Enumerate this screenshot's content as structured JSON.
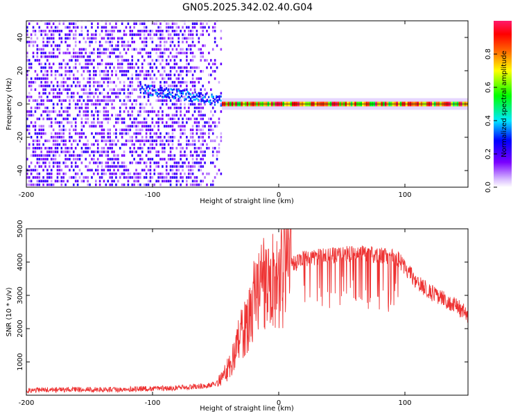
{
  "title": "GN05.2025.342.02.40.G04",
  "chart_data": [
    {
      "type": "heatmap",
      "xlabel": "Height of straight line (km)",
      "ylabel": "Frequency (Hz)",
      "xlim": [
        -200,
        150
      ],
      "ylim": [
        -50,
        50
      ],
      "x_ticks": [
        -200,
        -100,
        0,
        100
      ],
      "y_ticks": [
        -40,
        -20,
        0,
        20,
        40
      ],
      "grid": false,
      "colorbar": {
        "label": "Normalized spectral amplitude",
        "range": [
          0,
          1
        ],
        "ticks": [
          0.0,
          0.2,
          0.4,
          0.6,
          0.8
        ],
        "colormap": "rainbow (violet-blue-cyan-green-yellow-red-magenta)"
      },
      "features": [
        {
          "region": "broadband noise",
          "x_range": [
            -200,
            -45
          ],
          "freq_range": [
            -50,
            50
          ],
          "amplitude": "0.05-0.25"
        },
        {
          "region": "emerging carrier",
          "x_range": [
            -110,
            -45
          ],
          "freq_range": [
            -3,
            10
          ],
          "amplitude": "0.2-0.4"
        },
        {
          "region": "narrow carrier line",
          "x_range": [
            -45,
            150
          ],
          "freq_center": 0,
          "amplitude": "0.6-1.0"
        }
      ]
    },
    {
      "type": "line",
      "xlabel": "Height of straight line (km)",
      "ylabel": "SNR (10 * v/v)",
      "xlim": [
        -200,
        150
      ],
      "ylim": [
        0,
        5000
      ],
      "x_ticks": [
        -200,
        -100,
        0,
        100
      ],
      "y_ticks": [
        1000,
        2000,
        3000,
        4000,
        5000
      ],
      "color": "#ee3333",
      "grid": false,
      "series": [
        {
          "x": [
            -200,
            -180,
            -160,
            -140,
            -120,
            -100,
            -80,
            -70,
            -60,
            -55,
            -50,
            -45,
            -40,
            -35,
            -30,
            -25,
            -20,
            -15,
            -10,
            -5,
            0,
            5,
            10,
            15,
            20,
            30,
            40,
            50,
            60,
            70,
            80,
            90,
            95,
            100,
            110,
            120,
            130,
            140,
            150
          ],
          "y": [
            150,
            160,
            170,
            170,
            180,
            200,
            220,
            250,
            280,
            300,
            350,
            500,
            800,
            1300,
            1800,
            2300,
            2800,
            3200,
            3400,
            3500,
            3500,
            3700,
            3900,
            4000,
            4100,
            4150,
            4200,
            4250,
            4250,
            4250,
            4200,
            4150,
            4100,
            3800,
            3400,
            3100,
            2900,
            2700,
            2400
          ]
        }
      ]
    }
  ]
}
